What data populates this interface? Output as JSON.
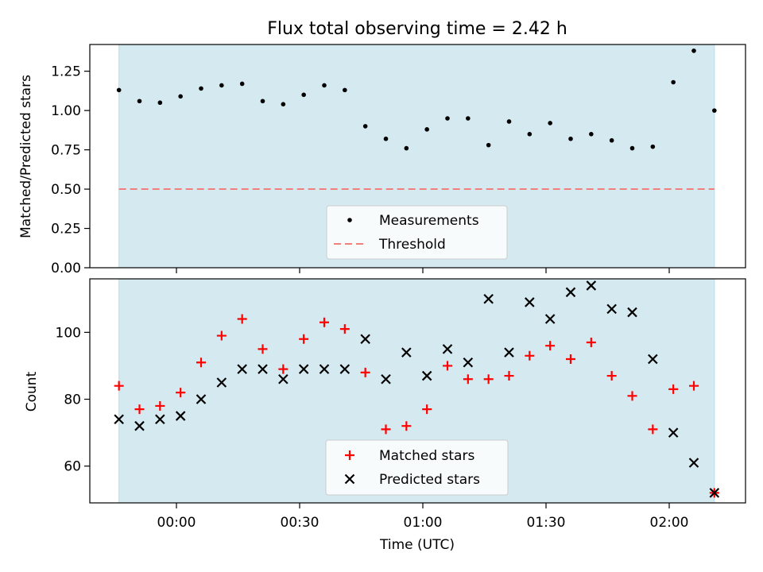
{
  "chart_data": [
    {
      "type": "scatter",
      "title": "Flux total observing time = 2.42 h",
      "ylabel": "Matched/Predicted stars",
      "xlabel": "",
      "ylim": [
        0,
        1.42
      ],
      "y_ticks": [
        "0.00",
        "0.25",
        "0.50",
        "0.75",
        "1.00",
        "1.25"
      ],
      "x_tick_labels": [],
      "observing_window": {
        "start": "23:46",
        "end": "02:11",
        "color": "#d4eaf0"
      },
      "threshold": {
        "name": "Threshold",
        "value": 0.5,
        "color": "#f08080"
      },
      "legend": {
        "position": "bottom-center",
        "entries": [
          "Measurements",
          "Threshold"
        ]
      },
      "series": [
        {
          "name": "Measurements",
          "marker": "dot",
          "color": "#000000",
          "x": [
            "23:46",
            "23:51",
            "23:56",
            "00:01",
            "00:06",
            "00:11",
            "00:16",
            "00:21",
            "00:26",
            "00:31",
            "00:36",
            "00:41",
            "00:46",
            "00:51",
            "00:56",
            "01:01",
            "01:06",
            "01:11",
            "01:16",
            "01:21",
            "01:26",
            "01:31",
            "01:36",
            "01:41",
            "01:46",
            "01:51",
            "01:56",
            "02:01",
            "02:06",
            "02:11"
          ],
          "y": [
            1.13,
            1.06,
            1.05,
            1.09,
            1.14,
            1.16,
            1.17,
            1.06,
            1.04,
            1.1,
            1.16,
            1.13,
            0.9,
            0.82,
            0.76,
            0.88,
            0.95,
            0.95,
            0.78,
            0.93,
            0.85,
            0.92,
            0.82,
            0.85,
            0.81,
            0.76,
            0.77,
            1.18,
            1.38,
            1.0
          ]
        }
      ]
    },
    {
      "type": "scatter",
      "title": "",
      "ylabel": "Count",
      "xlabel": "Time (UTC)",
      "ylim": [
        49,
        116
      ],
      "y_ticks": [
        "60",
        "80",
        "100"
      ],
      "x_tick_labels": [
        "00:00",
        "00:30",
        "01:00",
        "01:30",
        "02:00"
      ],
      "observing_window": {
        "start": "23:46",
        "end": "02:11",
        "color": "#d4eaf0"
      },
      "legend": {
        "position": "bottom-center",
        "entries": [
          "Matched stars",
          "Predicted stars"
        ]
      },
      "series": [
        {
          "name": "Matched stars",
          "marker": "plus",
          "color": "#ff0000",
          "x": [
            "23:46",
            "23:51",
            "23:56",
            "00:01",
            "00:06",
            "00:11",
            "00:16",
            "00:21",
            "00:26",
            "00:31",
            "00:36",
            "00:41",
            "00:46",
            "00:51",
            "00:56",
            "01:01",
            "01:06",
            "01:11",
            "01:16",
            "01:21",
            "01:26",
            "01:31",
            "01:36",
            "01:41",
            "01:46",
            "01:51",
            "01:56",
            "02:01",
            "02:06",
            "02:11"
          ],
          "y": [
            84,
            77,
            78,
            82,
            91,
            99,
            104,
            95,
            89,
            98,
            103,
            101,
            88,
            71,
            72,
            77,
            90,
            86,
            86,
            87,
            93,
            96,
            92,
            97,
            87,
            81,
            71,
            83,
            84,
            52
          ]
        },
        {
          "name": "Predicted stars",
          "marker": "x",
          "color": "#000000",
          "x": [
            "23:46",
            "23:51",
            "23:56",
            "00:01",
            "00:06",
            "00:11",
            "00:16",
            "00:21",
            "00:26",
            "00:31",
            "00:36",
            "00:41",
            "00:46",
            "00:51",
            "00:56",
            "01:01",
            "01:06",
            "01:11",
            "01:16",
            "01:21",
            "01:26",
            "01:31",
            "01:36",
            "01:41",
            "01:46",
            "01:51",
            "01:56",
            "02:01",
            "02:06",
            "02:11"
          ],
          "y": [
            74,
            72,
            74,
            75,
            80,
            85,
            89,
            89,
            86,
            89,
            89,
            89,
            98,
            86,
            94,
            87,
            95,
            91,
            110,
            94,
            109,
            104,
            112,
            114,
            107,
            106,
            92,
            70,
            61,
            52
          ]
        }
      ]
    }
  ]
}
